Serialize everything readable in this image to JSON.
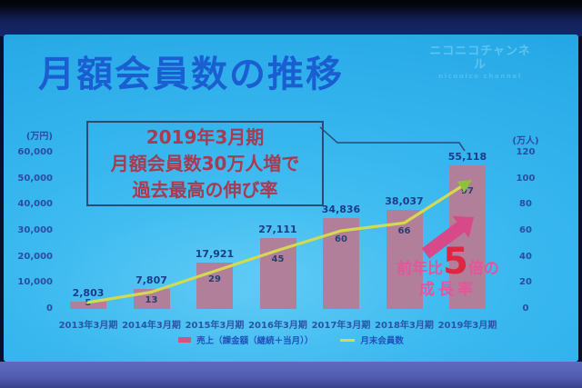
{
  "slide": {
    "title": "月額会員数の推移",
    "logo": {
      "line1": "ニコニコチャンネル",
      "line2": "niconico channel"
    },
    "callout": {
      "lines": [
        "2019年3月期",
        "月額会員数30万人増で",
        "過去最高の伸び率"
      ]
    },
    "annotation": {
      "pre": "前年比",
      "big": "5",
      "post": "倍の",
      "line2": "成長率"
    }
  },
  "chart_data": {
    "type": "bar+line",
    "categories": [
      "2013年3月期",
      "2014年3月期",
      "2015年3月期",
      "2016年3月期",
      "2017年3月期",
      "2018年3月期",
      "2019年3月期"
    ],
    "series": [
      {
        "name": "売上（課金額（継続＋当月））",
        "type": "bar",
        "axis": "left",
        "values": [
          2803,
          7807,
          17921,
          27111,
          34836,
          38037,
          55118
        ],
        "labels": [
          "2,803",
          "7,807",
          "17,921",
          "27,111",
          "34,836",
          "38,037",
          "55,118"
        ],
        "color": "#b17f9a"
      },
      {
        "name": "月末会員数",
        "type": "line",
        "axis": "right",
        "values": [
          5,
          13,
          29,
          45,
          60,
          66,
          97
        ],
        "labels": [
          "5",
          "13",
          "29",
          "45",
          "60",
          "66",
          "97"
        ],
        "color": "#d3da4f"
      }
    ],
    "left_axis": {
      "title": "(万円)",
      "tick_labels": [
        "60,000",
        "50,000",
        "40,000",
        "30,000",
        "20,000",
        "10,000",
        "0"
      ],
      "tick_values": [
        60000,
        50000,
        40000,
        30000,
        20000,
        10000,
        0
      ],
      "lim": [
        0,
        60000
      ]
    },
    "right_axis": {
      "title": "(万人)",
      "tick_labels": [
        "120",
        "100",
        "80",
        "60",
        "40",
        "20",
        "0"
      ],
      "tick_values": [
        120,
        100,
        80,
        60,
        40,
        20,
        0
      ],
      "lim": [
        0,
        120
      ]
    },
    "legend": [
      {
        "label": "売上（課金額（継続＋当月））",
        "shape": "bar",
        "swatch": "#d6537c"
      },
      {
        "label": "月末会員数",
        "shape": "line",
        "swatch": "#d8d952"
      }
    ],
    "grid": false,
    "legend_position": "bottom"
  }
}
